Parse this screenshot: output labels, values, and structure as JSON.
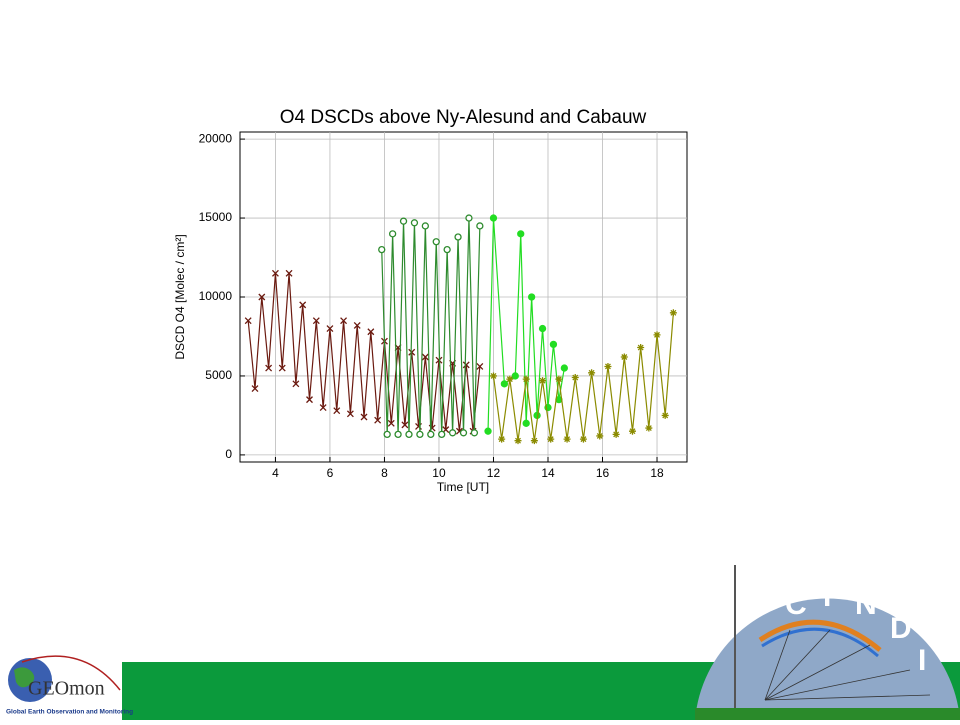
{
  "chart_data": {
    "type": "line",
    "title": "O4 DSCDs above Ny-Alesund and Cabauw",
    "x_label": "Time [UT]",
    "y_label": "DSCD O4 [Molec / cm²]",
    "xlim": [
      2.7,
      19.1
    ],
    "ylim": [
      -450,
      20450
    ],
    "xticks": [
      4,
      6,
      8,
      10,
      12,
      14,
      16,
      18
    ],
    "yticks": [
      0,
      5000,
      10000,
      15000,
      20000
    ],
    "grid": true,
    "series": [
      {
        "color": "#6b1a10",
        "marker": "x",
        "x": [
          3.0,
          3.25,
          3.5,
          3.75,
          4.0,
          4.25,
          4.5,
          4.75,
          5.0,
          5.25,
          5.5,
          5.75,
          6.0,
          6.25,
          6.5,
          6.75,
          7.0,
          7.25,
          7.5,
          7.75,
          8.0,
          8.25,
          8.5,
          8.75,
          9.0,
          9.25,
          9.5,
          9.75,
          10.0,
          10.25,
          10.5,
          10.75,
          11.0,
          11.25,
          11.5
        ],
        "values": [
          8500,
          4200,
          10000,
          5500,
          11500,
          5500,
          11500,
          4500,
          9500,
          3500,
          8500,
          3000,
          8000,
          2800,
          8500,
          2600,
          8200,
          2400,
          7800,
          2200,
          7200,
          2000,
          6800,
          1900,
          6500,
          1800,
          6200,
          1700,
          6000,
          1600,
          5800,
          1500,
          5700,
          1500,
          5600
        ]
      },
      {
        "color": "#2e8b2e",
        "marker": "circle-open",
        "x": [
          7.9,
          8.1,
          8.3,
          8.5,
          8.7,
          8.9,
          9.1,
          9.3,
          9.5,
          9.7,
          9.9,
          10.1,
          10.3,
          10.5,
          10.7,
          10.9,
          11.1,
          11.3,
          11.5
        ],
        "values": [
          13000,
          1300,
          14000,
          1300,
          14800,
          1300,
          14700,
          1300,
          14500,
          1300,
          13500,
          1300,
          13000,
          1400,
          13800,
          1400,
          15000,
          1400,
          14500
        ]
      },
      {
        "color": "#22dd22",
        "marker": "circle",
        "x": [
          11.8,
          12.0,
          12.4,
          12.8,
          13.0,
          13.2,
          13.4,
          13.6,
          13.8,
          14.0,
          14.2,
          14.4,
          14.6
        ],
        "values": [
          1500,
          15000,
          4500,
          5000,
          14000,
          2000,
          10000,
          2500,
          8000,
          3000,
          7000,
          3500,
          5500
        ]
      },
      {
        "color": "#8b8b00",
        "marker": "star",
        "x": [
          12.0,
          12.3,
          12.6,
          12.9,
          13.2,
          13.5,
          13.8,
          14.1,
          14.4,
          14.7,
          15.0,
          15.3,
          15.6,
          15.9,
          16.2,
          16.5,
          16.8,
          17.1,
          17.4,
          17.7,
          18.0,
          18.3,
          18.6
        ],
        "values": [
          5000,
          1000,
          4800,
          900,
          4800,
          900,
          4700,
          1000,
          4800,
          1000,
          4900,
          1000,
          5200,
          1200,
          5600,
          1300,
          6200,
          1500,
          6800,
          1700,
          7600,
          2500,
          9000
        ]
      }
    ]
  },
  "logos": {
    "geomon": "GEOmon",
    "geomon_subtitle": "Global Earth Observation and Monitoring",
    "cindi": [
      "C",
      "I",
      "N",
      "D",
      "I"
    ]
  }
}
